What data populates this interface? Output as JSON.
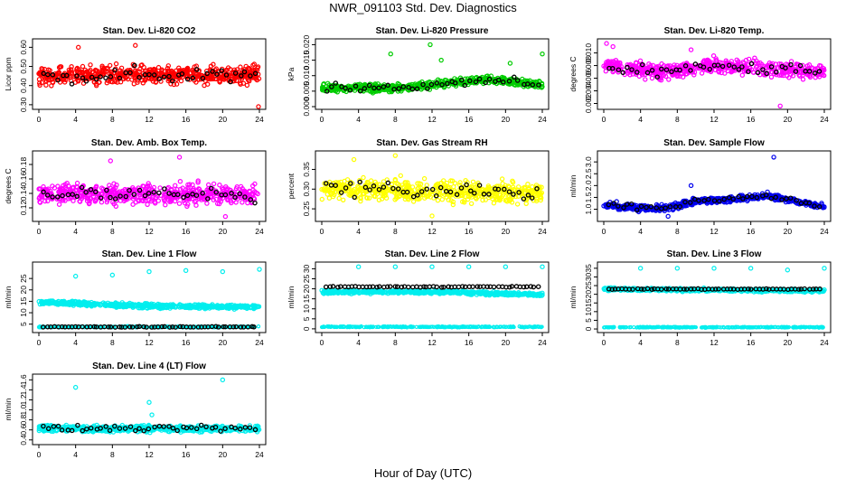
{
  "title": "NWR_091103  Std. Dev. Diagnostics",
  "xlabel": "Hour of Day (UTC)",
  "chart_data": [
    {
      "type": "scatter",
      "title": "Stan. Dev. Li-820 CO2",
      "ylabel": "Licor ppm",
      "color": "#ff0000",
      "ref_color": "#000000",
      "xlim": [
        0,
        24
      ],
      "ylim": [
        0.29,
        0.63
      ],
      "xticks": [
        "0",
        "4",
        "8",
        "12",
        "16",
        "20",
        "24"
      ],
      "yticks": [
        "0.30",
        "0.40",
        "0.50",
        "0.60"
      ],
      "ytick_values": [
        0.3,
        0.4,
        0.5,
        0.6
      ],
      "level": 0.465,
      "spread": 0.045,
      "trend": [
        [
          0,
          0.45
        ],
        [
          24,
          0.46
        ]
      ],
      "outliers": [
        [
          10.5,
          0.61
        ],
        [
          23.9,
          0.29
        ],
        [
          4.3,
          0.6
        ]
      ]
    },
    {
      "type": "scatter",
      "title": "Stan. Dev. Li-820 Pressure",
      "ylabel": "kPa",
      "color": "#00cc00",
      "ref_color": "#000000",
      "xlim": [
        0,
        24
      ],
      "ylim": [
        0,
        0.021
      ],
      "xticks": [
        "0",
        "4",
        "8",
        "12",
        "16",
        "20",
        "24"
      ],
      "yticks": [
        "0.000",
        "0.005",
        "0.010",
        "0.015",
        "0.020"
      ],
      "ytick_values": [
        0.0,
        0.005,
        0.01,
        0.015,
        0.02
      ],
      "level": 0.006,
      "spread": 0.0012,
      "trend": [
        [
          0,
          0.006
        ],
        [
          8,
          0.006
        ],
        [
          12,
          0.007
        ],
        [
          18,
          0.009
        ],
        [
          24,
          0.007
        ]
      ],
      "outliers": [
        [
          7.5,
          0.017
        ],
        [
          11.8,
          0.02
        ],
        [
          13,
          0.015
        ],
        [
          20.5,
          0.014
        ],
        [
          24,
          0.017
        ]
      ]
    },
    {
      "type": "scatter",
      "title": "Stan. Dev. Li-820 Temp.",
      "ylabel": "degrees C",
      "color": "#ff00ff",
      "ref_color": "#000000",
      "xlim": [
        0,
        24
      ],
      "ylim": [
        0.0015,
        0.0118
      ],
      "xticks": [
        "0",
        "4",
        "8",
        "12",
        "16",
        "20",
        "24"
      ],
      "yticks": [
        "0.002",
        "0.004",
        "0.006",
        "0.008",
        "0.010"
      ],
      "ytick_values": [
        0.002,
        0.004,
        0.006,
        0.008,
        0.01
      ],
      "level": 0.0072,
      "spread": 0.0011,
      "trend": [
        [
          0,
          0.008
        ],
        [
          6,
          0.007
        ],
        [
          12,
          0.008
        ],
        [
          24,
          0.007
        ]
      ],
      "outliers": [
        [
          0.3,
          0.0115
        ],
        [
          1,
          0.011
        ],
        [
          19.2,
          0.0016
        ],
        [
          9.5,
          0.0105
        ]
      ]
    },
    {
      "type": "scatter",
      "title": "Stan. Dev. Amb. Box Temp.",
      "ylabel": "degrees C",
      "color": "#ff00ff",
      "ref_color": "#000000",
      "xlim": [
        0,
        24
      ],
      "ylim": [
        0.105,
        0.195
      ],
      "xticks": [
        "0",
        "4",
        "8",
        "12",
        "16",
        "20",
        "24"
      ],
      "yticks": [
        "0.12",
        "0.14",
        "0.16",
        "0.18"
      ],
      "ytick_values": [
        0.12,
        0.14,
        0.16,
        0.18
      ],
      "level": 0.14,
      "spread": 0.013,
      "trend": [
        [
          0,
          0.14
        ],
        [
          24,
          0.138
        ]
      ],
      "outliers": [
        [
          15.3,
          0.19
        ],
        [
          20.3,
          0.108
        ],
        [
          7.8,
          0.185
        ]
      ]
    },
    {
      "type": "scatter",
      "title": "Stan. Dev. Gas Stream RH",
      "ylabel": "percent",
      "color": "#ffff00",
      "ref_color": "#000000",
      "xlim": [
        0,
        24
      ],
      "ylim": [
        0.225,
        0.39
      ],
      "xticks": [
        "0",
        "4",
        "8",
        "12",
        "16",
        "20",
        "24"
      ],
      "yticks": [
        "0.25",
        "0.30",
        "0.35"
      ],
      "ytick_values": [
        0.25,
        0.3,
        0.35
      ],
      "level": 0.295,
      "spread": 0.025,
      "trend": [
        [
          0,
          0.3
        ],
        [
          24,
          0.29
        ]
      ],
      "outliers": [
        [
          8,
          0.385
        ],
        [
          3.5,
          0.375
        ],
        [
          12,
          0.232
        ]
      ]
    },
    {
      "type": "scatter",
      "title": "Stan. Dev. Sample Flow",
      "ylabel": "ml/min",
      "color": "#0000ee",
      "ref_color": "#000000",
      "xlim": [
        0,
        24
      ],
      "ylim": [
        0.6,
        3.35
      ],
      "xticks": [
        "0",
        "4",
        "8",
        "12",
        "16",
        "20",
        "24"
      ],
      "yticks": [
        "1.0",
        "1.5",
        "2.0",
        "2.5",
        "3.0"
      ],
      "ytick_values": [
        1.0,
        1.5,
        2.0,
        2.5,
        3.0
      ],
      "level": 1.2,
      "spread": 0.12,
      "trend": [
        [
          0,
          1.2
        ],
        [
          4,
          1.05
        ],
        [
          7,
          1.05
        ],
        [
          10,
          1.35
        ],
        [
          13,
          1.4
        ],
        [
          18,
          1.55
        ],
        [
          22,
          1.25
        ],
        [
          24,
          1.1
        ]
      ],
      "outliers": [
        [
          18.5,
          3.2
        ],
        [
          7,
          0.7
        ],
        [
          9.5,
          2.0
        ]
      ]
    },
    {
      "type": "scatter",
      "title": "Stan. Dev. Line 1 Flow",
      "ylabel": "ml/min",
      "color": "#00eeee",
      "ref_color": "#000000",
      "xlim": [
        0,
        24
      ],
      "ylim": [
        2.5,
        31
      ],
      "xticks": [
        "0",
        "4",
        "8",
        "12",
        "16",
        "20",
        "24"
      ],
      "yticks": [
        "5",
        "10",
        "15",
        "20",
        "25"
      ],
      "ytick_values": [
        5,
        10,
        15,
        20,
        25
      ],
      "level": 13.5,
      "spread": 0.9,
      "trend": [
        [
          0,
          14.5
        ],
        [
          12,
          13
        ],
        [
          24,
          12.5
        ]
      ],
      "bands": [
        [
          3.8,
          0.25
        ]
      ],
      "ref_level": 3.8,
      "outliers": [
        [
          4,
          26
        ],
        [
          8,
          26.5
        ],
        [
          12,
          28
        ],
        [
          16,
          28.5
        ],
        [
          20,
          28
        ],
        [
          24,
          29
        ]
      ]
    },
    {
      "type": "scatter",
      "title": "Stan. Dev. Line 2 Flow",
      "ylabel": "ml/min",
      "color": "#00eeee",
      "ref_color": "#000000",
      "xlim": [
        0,
        24
      ],
      "ylim": [
        -0.5,
        32
      ],
      "xticks": [
        "0",
        "4",
        "8",
        "12",
        "16",
        "20",
        "24"
      ],
      "yticks": [
        "0",
        "5",
        "10",
        "15",
        "20",
        "25",
        "30"
      ],
      "ytick_values": [
        0,
        5,
        10,
        15,
        20,
        25,
        30
      ],
      "level": 18.5,
      "spread": 0.8,
      "trend": [
        [
          0,
          18.5
        ],
        [
          12,
          18.5
        ],
        [
          24,
          17
        ]
      ],
      "bands": [
        [
          1,
          0.25
        ]
      ],
      "ref_level": 21,
      "outliers": [
        [
          4,
          31
        ],
        [
          8,
          31
        ],
        [
          12,
          31
        ],
        [
          16,
          31
        ],
        [
          20,
          31
        ],
        [
          24,
          31
        ]
      ]
    },
    {
      "type": "scatter",
      "title": "Stan. Dev. Line 3 Flow",
      "ylabel": "ml/min",
      "color": "#00eeee",
      "ref_color": "#000000",
      "xlim": [
        0,
        24
      ],
      "ylim": [
        -0.5,
        37
      ],
      "xticks": [
        "0",
        "4",
        "8",
        "12",
        "16",
        "20",
        "24"
      ],
      "yticks": [
        "0",
        "5",
        "10",
        "15",
        "20",
        "25",
        "30",
        "35"
      ],
      "ytick_values": [
        0,
        5,
        10,
        15,
        20,
        25,
        30,
        35
      ],
      "level": 22.5,
      "spread": 0.8,
      "trend": [
        [
          0,
          23
        ],
        [
          24,
          22
        ]
      ],
      "bands": [
        [
          1,
          0.25
        ]
      ],
      "ref_level": 23,
      "outliers": [
        [
          4,
          35
        ],
        [
          8,
          35
        ],
        [
          12,
          35
        ],
        [
          16,
          35
        ],
        [
          20,
          34
        ],
        [
          24,
          35
        ]
      ]
    },
    {
      "type": "scatter",
      "title": "Stan. Dev. Line 4 (LT) Flow",
      "ylabel": "ml/min",
      "color": "#00eeee",
      "ref_color": "#000000",
      "xlim": [
        0,
        24
      ],
      "ylim": [
        0.36,
        1.66
      ],
      "xticks": [
        "0",
        "4",
        "8",
        "12",
        "16",
        "20",
        "24"
      ],
      "yticks": [
        "0.4",
        "0.6",
        "0.8",
        "1.0",
        "1.2",
        "1.4",
        "1.6"
      ],
      "ytick_values": [
        0.4,
        0.6,
        0.8,
        1.0,
        1.2,
        1.4,
        1.6
      ],
      "level": 0.62,
      "spread": 0.06,
      "trend": [
        [
          0,
          0.63
        ],
        [
          24,
          0.62
        ]
      ],
      "outliers": [
        [
          4,
          1.45
        ],
        [
          12,
          1.15
        ],
        [
          20,
          1.6
        ],
        [
          12.3,
          0.9
        ]
      ]
    }
  ]
}
